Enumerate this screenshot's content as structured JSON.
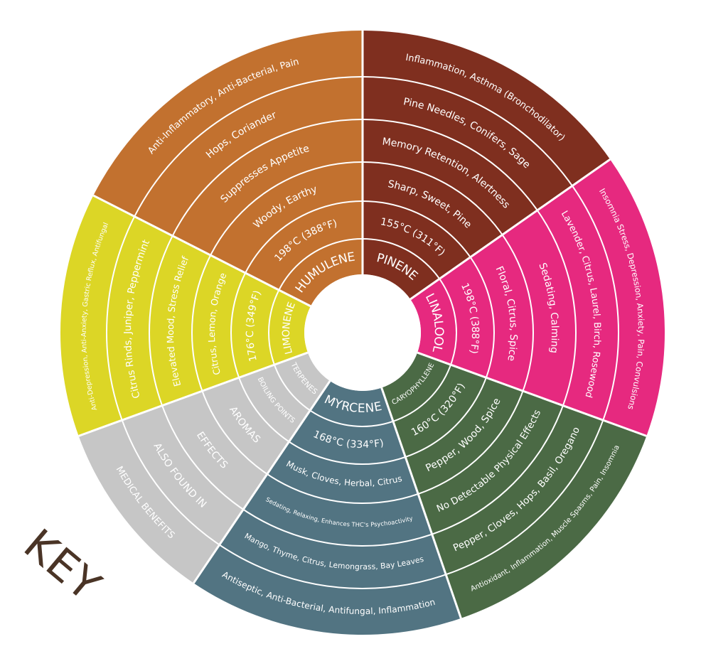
{
  "key_label": "KEY",
  "colors": {
    "background": "#ffffff",
    "divider": "#ffffff",
    "key_text": "#4a3426"
  },
  "sectors": [
    {
      "id": "humulene",
      "color": "#c2712f",
      "labels": [
        "HUMULENE",
        "198°C (388°F)",
        "Woody, Earthy",
        "Suppresses Appetite",
        "Hops, Coriander",
        "Anti-Inflammatory, Anti-Bacterial, Pain"
      ]
    },
    {
      "id": "pinene",
      "color": "#7f2f1f",
      "labels": [
        "PINENE",
        "155°C (311°F)",
        "Sharp, Sweet, Pine",
        "Memory Retention, Alertness",
        "Pine Needles, Conifers, Sage",
        "Inflammation, Asthma (Bronchodilator)"
      ]
    },
    {
      "id": "linalool",
      "color": "#e6297f",
      "labels": [
        "LINALOOL",
        "198°C (388°F)",
        "Floral, Citrus, Spice",
        "Sedating, Calming",
        "Lavender, Citrus, Laurel, Birch, Rosewood",
        "Insomnia Stress, Depression, Anxiety, Pain, Convulsions"
      ]
    },
    {
      "id": "caryophyllene",
      "color": "#4b6a45",
      "labels": [
        "CARYOPHYLLENE",
        "160°C (320°F)",
        "Pepper, Wood, Spice",
        "No Detectable Physical Effects",
        "Pepper, Cloves, Hops, Basil, Oregano",
        "Antioxidant, Inflammation, Muscle Spasms, Pain, Insomnia"
      ]
    },
    {
      "id": "myrcene",
      "color": "#527482",
      "labels": [
        "MYRCENE",
        "168°C (334°F)",
        "Musk, Cloves, Herbal, Citrus",
        "Sedating, Relaxing, Enhances THC's Psychoactivity",
        "Mango, Thyme, Citrus, Lemongrass, Bay Leaves",
        "Antiseptic, Anti-Bacterial, Antifungal, Inflammation"
      ]
    },
    {
      "id": "key",
      "color": "#c6c6c6",
      "labels": [
        "TERPENES",
        "BOILING POINTS",
        "AROMAS",
        "EFFECTS",
        "ALSO FOUND IN",
        "MEDICAL BENEFITS"
      ]
    },
    {
      "id": "limonene",
      "color": "#dcd626",
      "labels": [
        "LIMONENE",
        "176°C (349°F)",
        "Citrus, Lemon, Orange",
        "Elevated Mood, Stress Relief",
        "Citrus Rinds, Juniper,  Peppermint",
        "Anti-Depression, Anti-Anxiety, Gastric Reflux, Antifungal"
      ]
    }
  ]
}
